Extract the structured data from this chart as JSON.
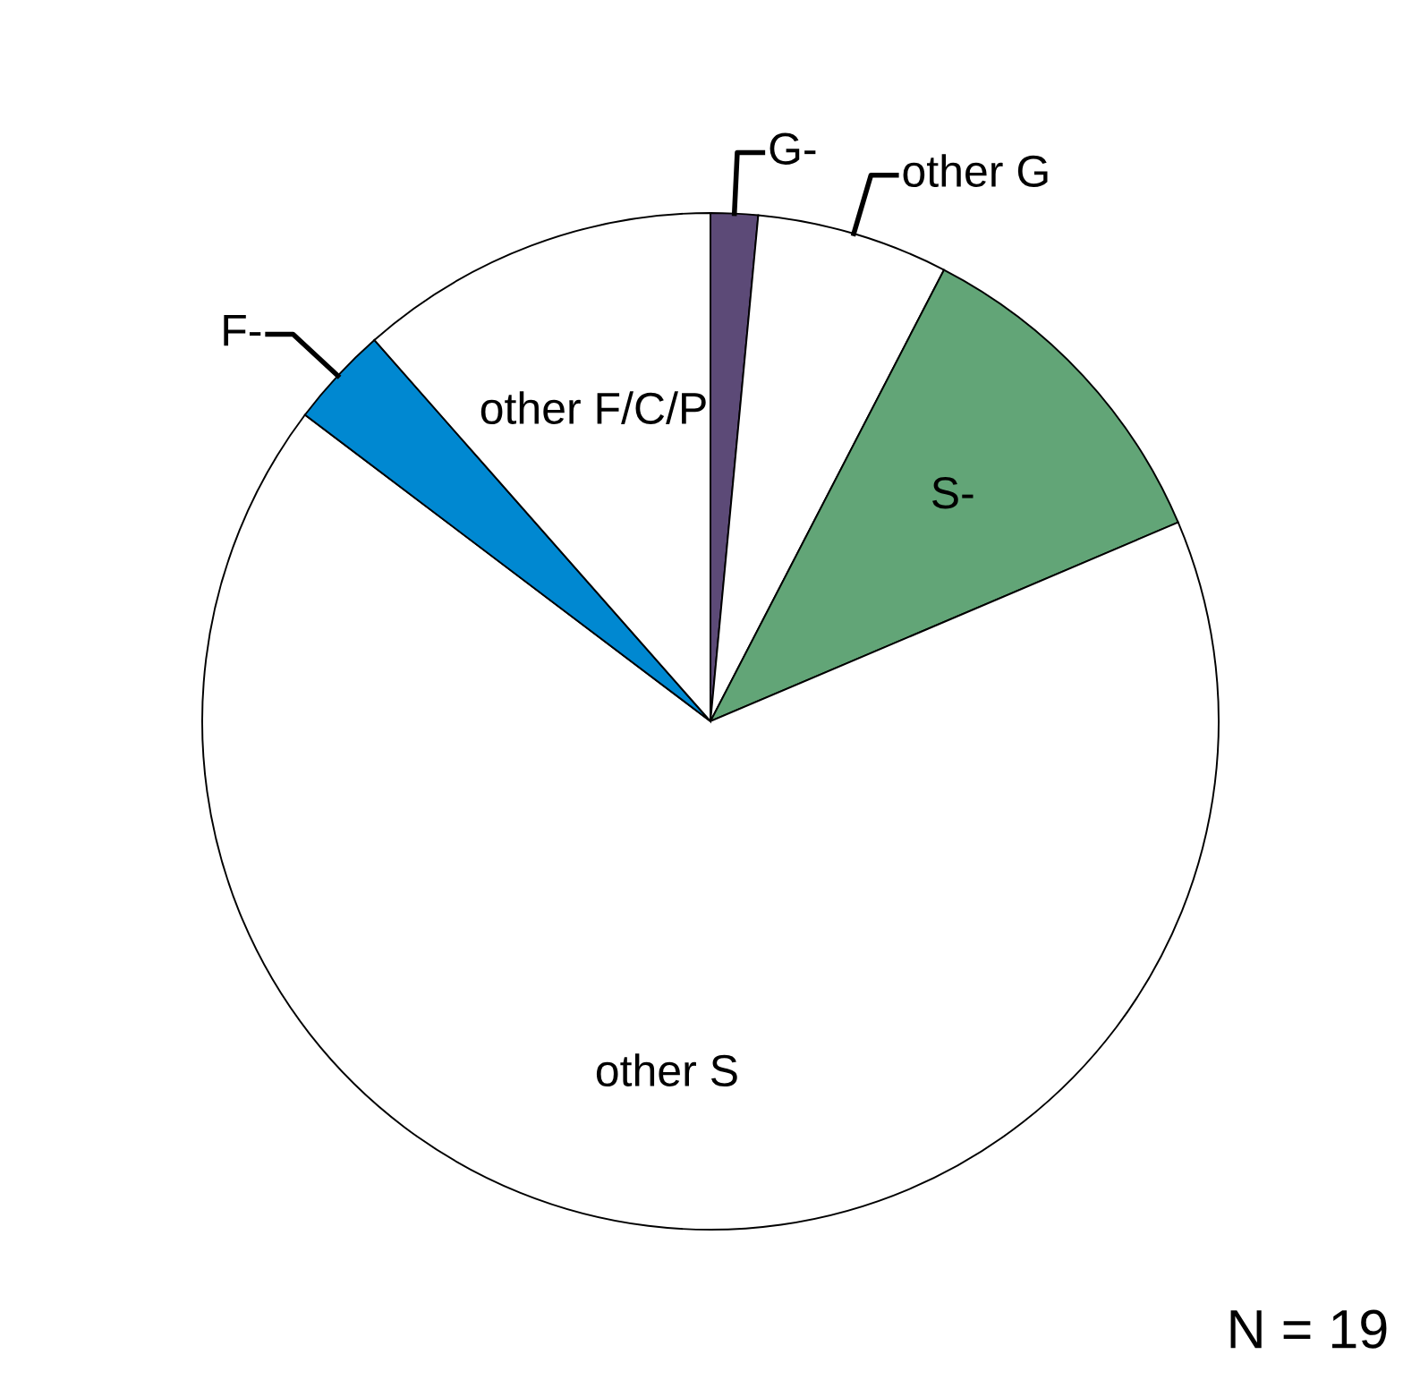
{
  "chart_data": {
    "type": "pie",
    "categories": [
      "G-",
      "other G",
      "S-",
      "other S",
      "F-",
      "other F/C/P"
    ],
    "values": [
      1.5,
      6.1,
      11,
      66.7,
      3.2,
      11.5
    ],
    "colors": [
      "#5c4a77",
      "#ffffff",
      "#62a577",
      "#ffffff",
      "#0088d1",
      "#ffffff"
    ],
    "annotations": [
      "N = 19"
    ]
  }
}
